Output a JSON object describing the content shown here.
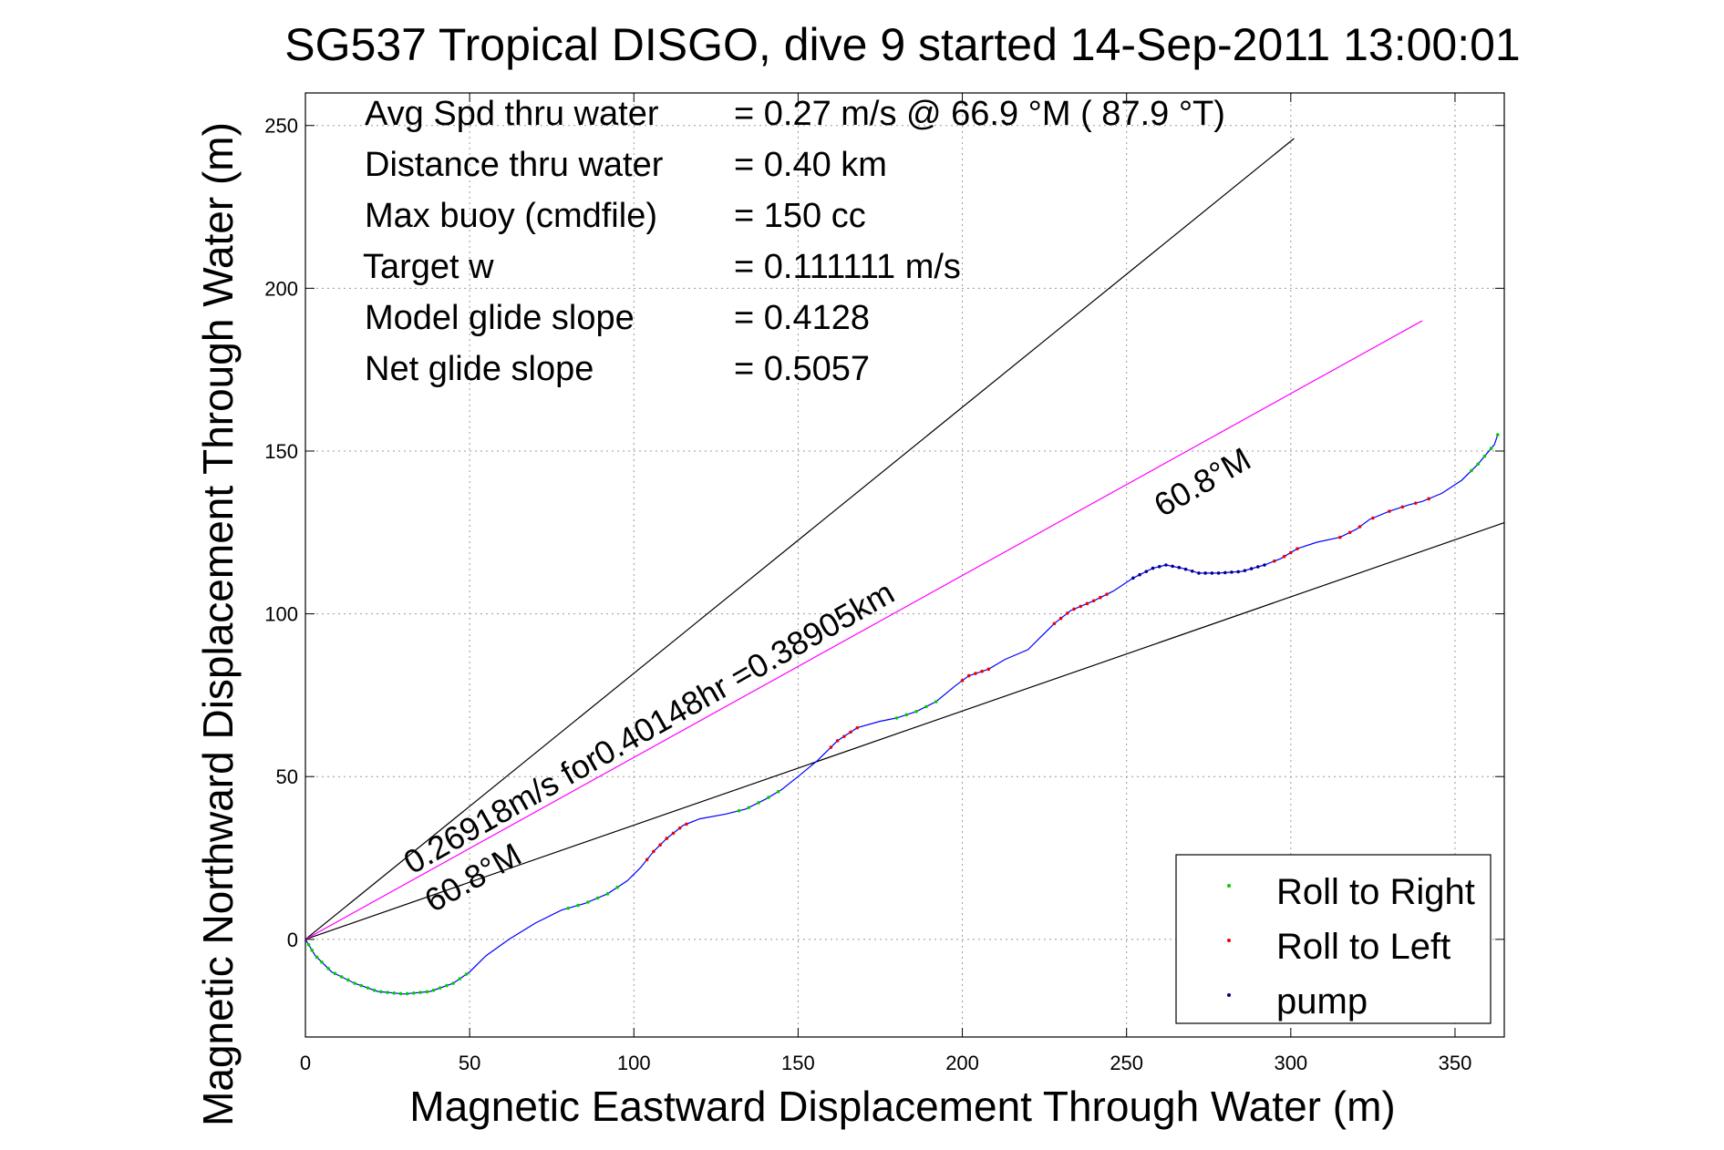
{
  "chart_data": {
    "type": "line",
    "title": "SG537 Tropical DISGO, dive 9 started 14-Sep-2011 13:00:01",
    "xlabel": "Magnetic Eastward Displacement Through Water (m)",
    "ylabel": "Magnetic Northward Displacement Through Water (m)",
    "xlim": [
      0,
      365
    ],
    "ylim": [
      -30,
      260
    ],
    "xticks": [
      0,
      50,
      100,
      150,
      200,
      250,
      300,
      350
    ],
    "yticks": [
      0,
      50,
      100,
      150,
      200,
      250
    ],
    "grid": true,
    "legend_position": "bottom-right",
    "info_text": [
      {
        "label": "Avg Spd thru water",
        "value": "=  0.27 m/s @  66.9 °M ( 87.9 °T)"
      },
      {
        "label": "Distance thru water",
        "value": "=  0.40 km"
      },
      {
        "label": "Max buoy (cmdfile)",
        "value": "= 150 cc"
      },
      {
        "label": "Target w",
        "value": "= 0.111111 m/s"
      },
      {
        "label": "Model glide slope",
        "value": "= 0.4128"
      },
      {
        "label": "Net glide slope",
        "value": "= 0.5057"
      }
    ],
    "annotations": {
      "speed_label": "0.26918m/s for0.40148hr =0.38905km",
      "heading_label_lower": "60.8°M",
      "heading_label_upper": "60.8°M"
    },
    "lines": {
      "upper_bound": {
        "x": [
          0,
          301
        ],
        "y": [
          0,
          246
        ]
      },
      "lower_bound": {
        "x": [
          0,
          365
        ],
        "y": [
          0,
          128
        ]
      },
      "avg_vector": {
        "x": [
          0,
          340
        ],
        "y": [
          0,
          190
        ]
      }
    },
    "track": {
      "x": [
        0,
        3,
        8,
        15,
        22,
        30,
        38,
        45,
        50,
        55,
        62,
        70,
        78,
        85,
        92,
        98,
        102,
        106,
        110,
        115,
        120,
        128,
        134,
        140,
        145,
        150,
        156,
        162,
        168,
        175,
        180,
        186,
        192,
        198,
        202,
        208,
        213,
        220,
        224,
        228,
        233,
        240,
        246,
        252,
        258,
        262,
        267,
        272,
        278,
        285,
        292,
        297,
        302,
        308,
        315,
        320,
        324,
        330,
        336,
        340,
        346,
        352,
        357,
        362,
        363
      ],
      "y": [
        0,
        -5,
        -10,
        -13.5,
        -16,
        -16.8,
        -16,
        -13.5,
        -10,
        -5,
        0,
        5,
        9,
        11,
        14,
        18,
        22,
        27,
        31,
        35,
        37,
        38.5,
        40,
        43,
        46,
        50,
        55,
        61,
        65,
        67,
        68,
        70,
        73,
        78,
        81,
        83,
        86,
        89,
        93,
        97,
        101,
        104,
        107,
        111,
        114,
        115,
        114,
        112.5,
        112.5,
        113,
        115,
        117,
        120,
        122,
        123.5,
        126,
        129,
        131.5,
        133.5,
        134.5,
        137,
        141,
        146,
        152,
        155
      ]
    },
    "series": [
      {
        "name": "Roll to Right",
        "color": "#00cc00",
        "x": [
          1,
          2,
          3.5,
          5,
          7,
          9,
          11,
          13,
          15,
          17,
          19,
          21,
          23,
          25,
          27,
          29,
          31,
          33,
          35,
          37,
          39,
          41,
          43,
          45,
          47,
          49,
          80,
          83,
          86,
          89,
          92,
          95,
          132,
          135,
          138,
          141,
          144,
          180,
          183,
          186,
          189,
          192,
          355,
          357,
          359,
          361,
          363
        ]
      },
      {
        "name": "Roll to Left",
        "color": "#ee0000",
        "x": [
          104,
          106,
          108,
          110,
          112,
          114,
          116,
          160,
          162,
          164,
          166,
          168,
          200,
          202,
          204,
          206,
          208,
          228,
          230,
          232,
          234,
          236,
          238,
          240,
          242,
          244,
          295,
          298,
          300,
          302,
          315,
          318,
          321,
          325,
          330,
          334,
          338,
          342
        ]
      },
      {
        "name": "pump",
        "color": "#000080",
        "x": [
          252,
          254,
          256,
          258,
          260,
          262,
          264,
          266,
          268,
          270,
          272,
          274,
          276,
          278,
          280,
          282,
          284,
          286,
          288,
          290,
          292
        ]
      }
    ],
    "colors": {
      "track": "#0000ff",
      "avg_vector": "#ff00ff",
      "bounds": "#000000"
    }
  }
}
